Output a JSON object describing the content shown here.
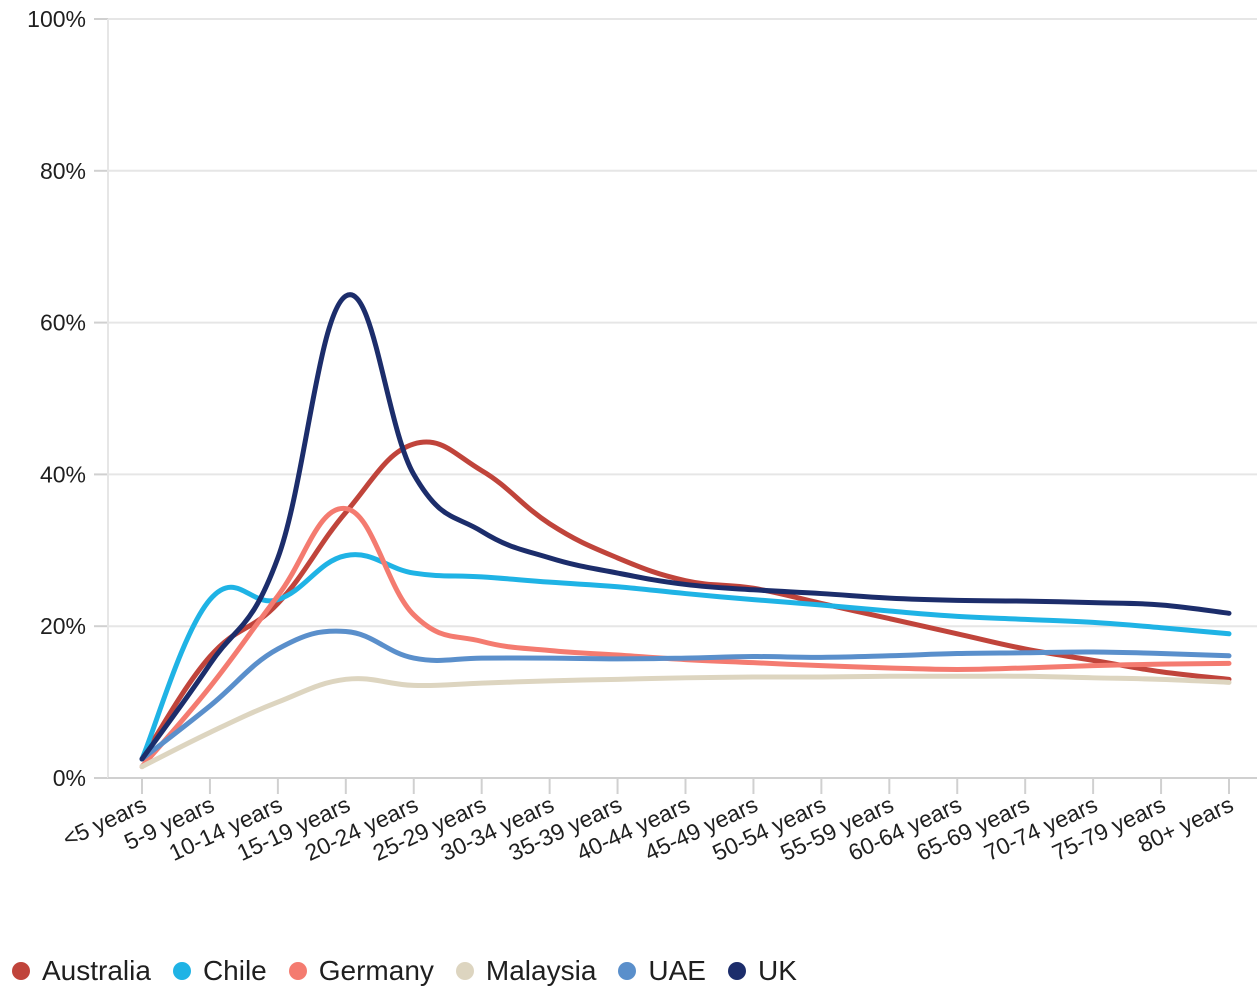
{
  "chart_data": {
    "type": "line",
    "categories": [
      "<5 years",
      "5-9 years",
      "10-14 years",
      "15-19 years",
      "20-24 years",
      "25-29 years",
      "30-34 years",
      "35-39 years",
      "40-44 years",
      "45-49 years",
      "50-54 years",
      "55-59 years",
      "60-64 years",
      "65-69 years",
      "70-74 years",
      "75-79 years",
      "80+ years"
    ],
    "ylim": [
      0,
      100
    ],
    "yticks": [
      "0%",
      "20%",
      "40%",
      "60%",
      "80%",
      "100%"
    ],
    "ytick_values": [
      0,
      20,
      40,
      60,
      80,
      100
    ],
    "grid": "horizontal",
    "legend_position": "bottom-left",
    "series": [
      {
        "name": "Australia",
        "color": "#c0443b",
        "values": [
          2.5,
          16,
          23,
          35,
          44,
          40.5,
          33.5,
          29,
          26,
          25,
          23,
          21,
          19,
          17,
          15.5,
          14,
          13
        ]
      },
      {
        "name": "Chile",
        "color": "#1fb3e5",
        "values": [
          2.5,
          23.5,
          23.5,
          29.3,
          27,
          26.5,
          25.8,
          25.2,
          24.3,
          23.5,
          22.8,
          22,
          21.3,
          20.9,
          20.5,
          19.8,
          19
        ]
      },
      {
        "name": "Germany",
        "color": "#f47b70",
        "values": [
          1.5,
          12,
          24,
          35.5,
          21.5,
          18,
          16.8,
          16.2,
          15.6,
          15.2,
          14.8,
          14.5,
          14.3,
          14.5,
          14.8,
          15,
          15.1
        ]
      },
      {
        "name": "Malaysia",
        "color": "#ddd5c0",
        "values": [
          1.5,
          6,
          10,
          13,
          12.2,
          12.5,
          12.8,
          13,
          13.2,
          13.3,
          13.3,
          13.4,
          13.4,
          13.4,
          13.2,
          13,
          12.6
        ]
      },
      {
        "name": "UAE",
        "color": "#5a8fcb",
        "values": [
          2.5,
          9.5,
          17,
          19.3,
          15.8,
          15.8,
          15.8,
          15.7,
          15.8,
          16,
          15.9,
          16.1,
          16.4,
          16.5,
          16.6,
          16.4,
          16.1
        ]
      },
      {
        "name": "UK",
        "color": "#1c2d6b",
        "values": [
          2.5,
          15,
          29,
          63.5,
          40,
          32.5,
          29,
          27,
          25.5,
          24.8,
          24.3,
          23.7,
          23.4,
          23.3,
          23.1,
          22.8,
          21.7
        ]
      }
    ]
  }
}
